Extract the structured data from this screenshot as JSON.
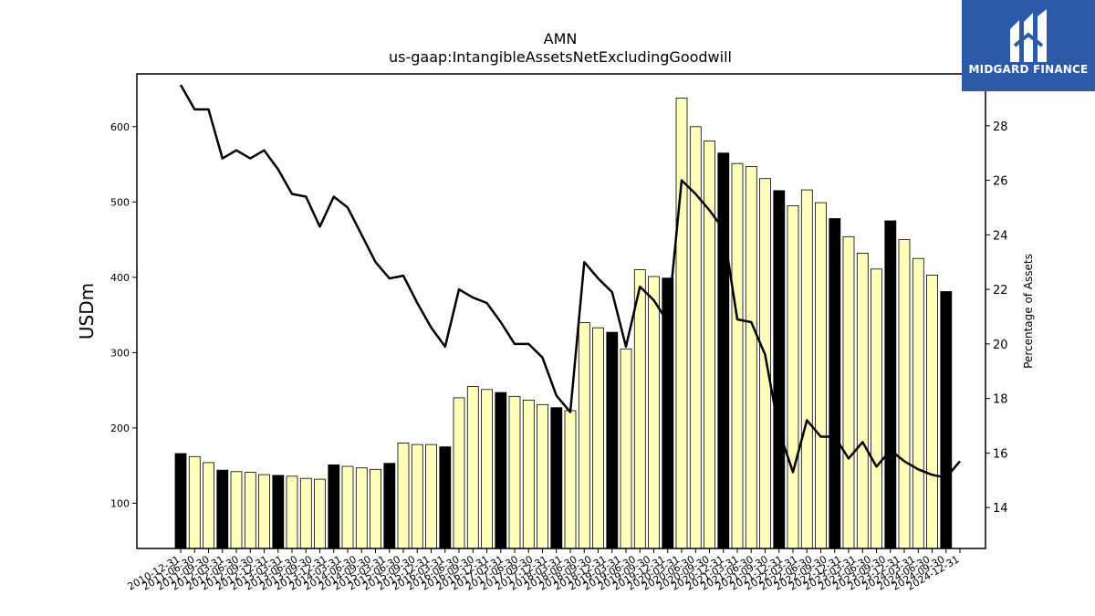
{
  "logo": {
    "text": "MIDGARD FINANCE"
  },
  "chart_data": {
    "type": "bar",
    "title": "AMN",
    "subtitle": "us-gaap:IntangibleAssetsNetExcludingGoodwill",
    "ylabel": "USDm",
    "y2label": "Percentage of Assets",
    "ylim": [
      40,
      670
    ],
    "y2lim": [
      12.5,
      29.9
    ],
    "yticks": [
      100,
      200,
      300,
      400,
      500,
      600
    ],
    "y2ticks": [
      14,
      16,
      18,
      20,
      22,
      24,
      26,
      28
    ],
    "colors": {
      "annual_bar": "#000000",
      "quarter_bar": "#ffffbb",
      "line": "#000000"
    },
    "categories": [
      "2010-12-31",
      "2011-03-31",
      "2011-06-30",
      "2011-09-30",
      "2011-12-31",
      "2012-03-31",
      "2012-06-30",
      "2012-09-30",
      "2012-12-31",
      "2013-03-31",
      "2013-06-30",
      "2013-09-30",
      "2013-12-31",
      "2014-03-31",
      "2014-06-30",
      "2014-09-30",
      "2014-12-31",
      "2015-03-31",
      "2015-06-30",
      "2015-09-30",
      "2015-12-31",
      "2016-03-31",
      "2016-06-30",
      "2016-09-30",
      "2016-12-31",
      "2017-03-31",
      "2017-06-30",
      "2017-09-30",
      "2017-12-31",
      "2018-03-31",
      "2018-06-30",
      "2018-09-30",
      "2018-12-31",
      "2019-03-31",
      "2019-06-30",
      "2019-09-30",
      "2019-12-31",
      "2020-03-31",
      "2020-06-30",
      "2020-09-30",
      "2020-12-31",
      "2021-03-31",
      "2021-06-30",
      "2021-09-30",
      "2021-12-31",
      "2022-03-31",
      "2022-06-30",
      "2022-09-30",
      "2022-12-31",
      "2023-03-31",
      "2023-06-30",
      "2023-09-30",
      "2023-12-31",
      "2024-03-31",
      "2024-06-30",
      "2024-09-30",
      "2024-12-31"
    ],
    "xtick_labels": [
      "2010-12-31",
      "2011-06-30",
      "2011-09-30",
      "2012-03-31",
      "2012-06-30",
      "2012-09-30",
      "2012-12-31",
      "2013-03-31",
      "2013-06-30",
      "2013-09-30",
      "2013-12-31",
      "2014-03-31",
      "2014-06-30",
      "2014-09-30",
      "2015-03-31",
      "2015-06-30",
      "2015-09-30",
      "2015-12-31",
      "2016-03-31",
      "2016-06-30",
      "2016-09-30",
      "2016-12-31",
      "2017-03-31",
      "2017-06-30",
      "2017-09-30",
      "2017-12-31",
      "2018-03-31",
      "2018-06-30",
      "2018-09-30",
      "2018-12-31",
      "2019-03-31",
      "2019-06-30",
      "2019-09-30",
      "2019-12-31",
      "2020-03-31",
      "2020-06-30",
      "2020-09-30",
      "2020-12-31",
      "2021-03-31",
      "2021-06-30",
      "2021-09-30",
      "2021-12-31",
      "2022-03-31",
      "2022-06-30",
      "2022-09-30",
      "2022-12-31",
      "2023-03-31",
      "2023-06-30",
      "2023-09-30",
      "2023-12-31",
      "2024-03-31",
      "2024-06-30",
      "2024-09-30",
      "2024-12-31"
    ],
    "series": [
      {
        "kind": "bar",
        "axis": "left",
        "values": [
          166,
          162,
          154,
          144,
          142,
          141,
          138,
          137,
          136,
          133,
          132,
          151,
          149,
          147,
          145,
          153,
          180,
          178,
          178,
          175,
          240,
          255,
          251,
          247,
          242,
          237,
          231,
          227,
          223,
          340,
          333,
          327,
          305,
          410,
          401,
          399,
          638,
          600,
          581,
          565,
          551,
          547,
          531,
          515,
          495,
          516,
          499,
          478,
          454,
          432,
          411,
          475,
          450,
          425,
          403,
          381,
          null
        ],
        "annual_flags": [
          1,
          0,
          0,
          1,
          0,
          0,
          0,
          1,
          0,
          0,
          0,
          1,
          0,
          0,
          0,
          1,
          0,
          0,
          0,
          1,
          0,
          0,
          0,
          1,
          0,
          0,
          0,
          1,
          0,
          0,
          0,
          1,
          0,
          0,
          0,
          1,
          0,
          0,
          0,
          1,
          0,
          0,
          0,
          1,
          0,
          0,
          0,
          1,
          0,
          0,
          0,
          1,
          0,
          0,
          0,
          1,
          0
        ]
      },
      {
        "kind": "line",
        "axis": "right",
        "values": [
          29.5,
          28.6,
          28.6,
          26.8,
          27.1,
          26.8,
          27.1,
          26.4,
          25.5,
          25.4,
          24.3,
          25.4,
          25.0,
          24.0,
          23.0,
          22.4,
          22.5,
          21.5,
          20.6,
          19.9,
          22.0,
          21.7,
          21.5,
          20.8,
          20.0,
          20.0,
          19.5,
          18.1,
          17.5,
          23.0,
          22.4,
          21.9,
          19.9,
          22.1,
          21.6,
          20.8,
          26.0,
          25.5,
          24.9,
          24.2,
          20.9,
          20.8,
          19.6,
          16.8,
          15.3,
          17.2,
          16.6,
          16.6,
          15.8,
          16.4,
          15.5,
          16.1,
          15.7,
          15.4,
          15.2,
          15.1,
          15.7
        ]
      }
    ]
  }
}
